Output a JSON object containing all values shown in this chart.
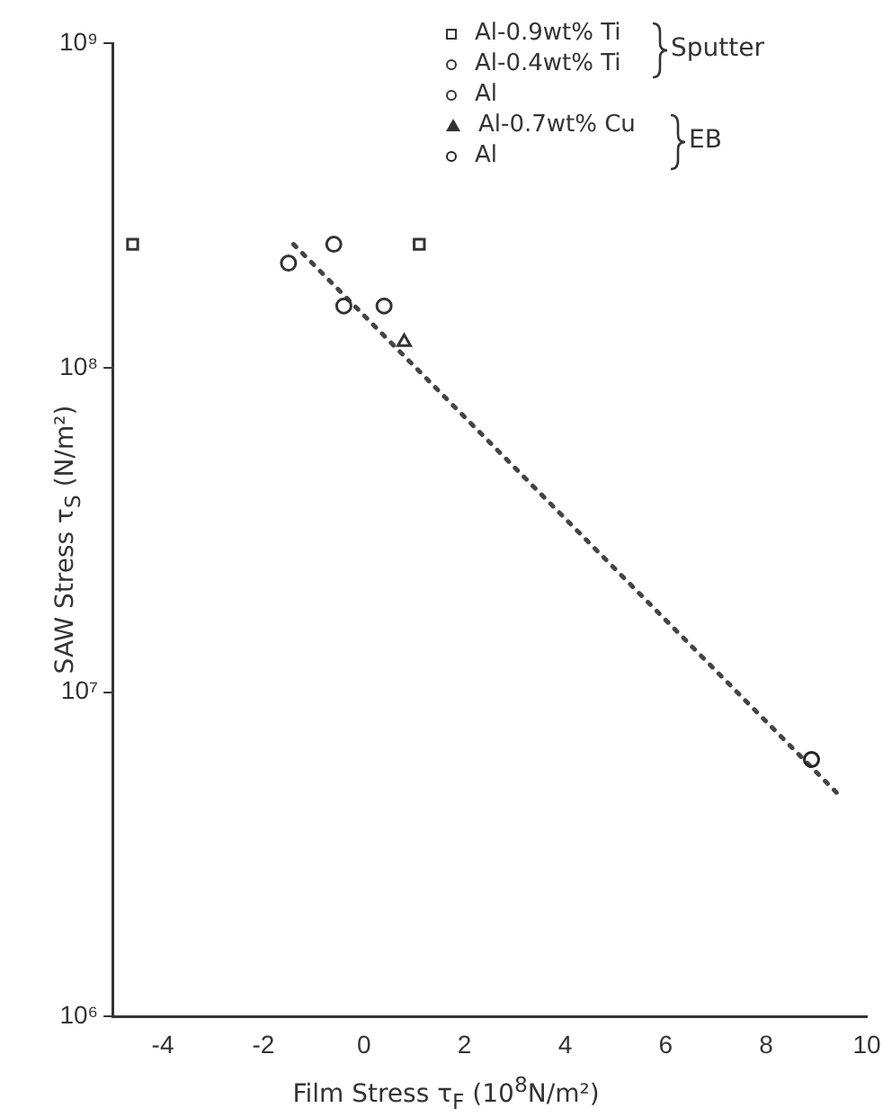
{
  "chart_data": {
    "type": "scatter",
    "xlabel": "Film Stress τ$_{F}$ (10$^{8}$N/m²)",
    "ylabel": "SAW Stress τ$_{S}$ (N/m²)",
    "xlim": [
      -5,
      10
    ],
    "xticks": [
      -4,
      -2,
      0,
      2,
      4,
      6,
      8,
      10
    ],
    "ylim": [
      1000000,
      1000000000
    ],
    "yticks": [
      {
        "value": 1000000,
        "label": "10⁶"
      },
      {
        "value": 10000000,
        "label": "10⁷"
      },
      {
        "value": 100000000,
        "label": "10⁸"
      },
      {
        "value": 1000000000,
        "label": "10⁹"
      }
    ],
    "log": "y",
    "grid": false,
    "legend": "top right",
    "annotations": [
      "Sputter",
      "EB"
    ],
    "series": [
      {
        "name": "Al-0.9wt% Ti",
        "color": "#333333",
        "marker": "square",
        "x": [
          -4.6,
          1.1
        ],
        "values": [
          240000000,
          240000000
        ]
      },
      {
        "name": "Al-0.4wt% Ti",
        "color": "#333333",
        "marker": "circle",
        "x": [
          -0.6,
          -1.5
        ],
        "values": [
          240000000,
          210000000
        ]
      },
      {
        "name": "Al",
        "color": "#333333",
        "marker": "circle",
        "x": [
          -0.4,
          0.4
        ],
        "values": [
          155000000,
          155000000
        ]
      },
      {
        "name": "Al-0.7wt% Cu",
        "color": "#333333",
        "marker": "triangle",
        "x": [
          0.8
        ],
        "values": [
          120000000
        ]
      },
      {
        "name": "Al",
        "color": "#222222",
        "marker": "circle",
        "x": [
          8.9
        ],
        "values": [
          6200000
        ]
      },
      {
        "type": "line",
        "color": "#444444",
        "line_style": "dotted",
        "marker": "none",
        "x": [
          -1.4,
          9.4
        ],
        "values": [
          240000000,
          4900000
        ]
      }
    ]
  }
}
